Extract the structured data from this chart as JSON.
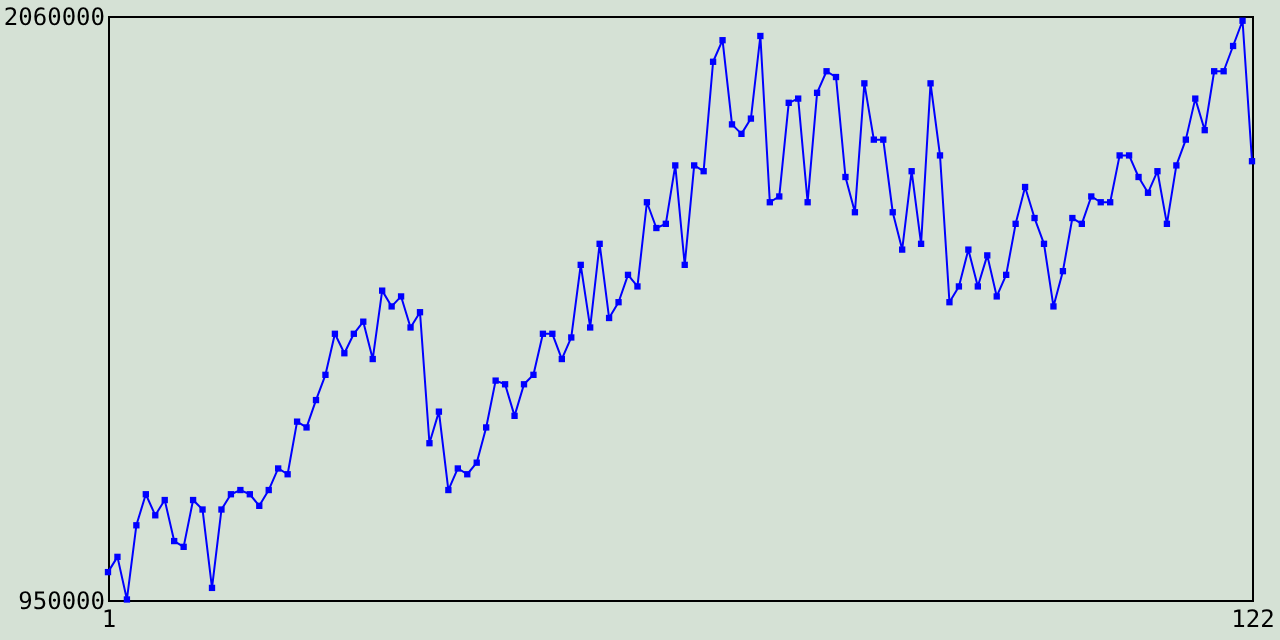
{
  "chart_data": {
    "type": "line",
    "x": [
      1,
      2,
      3,
      4,
      5,
      6,
      7,
      8,
      9,
      10,
      11,
      12,
      13,
      14,
      15,
      16,
      17,
      18,
      19,
      20,
      21,
      22,
      23,
      24,
      25,
      26,
      27,
      28,
      29,
      30,
      31,
      32,
      33,
      34,
      35,
      36,
      37,
      38,
      39,
      40,
      41,
      42,
      43,
      44,
      45,
      46,
      47,
      48,
      49,
      50,
      51,
      52,
      53,
      54,
      55,
      56,
      57,
      58,
      59,
      60,
      61,
      62,
      63,
      64,
      65,
      66,
      67,
      68,
      69,
      70,
      71,
      72,
      73,
      74,
      75,
      76,
      77,
      78,
      79,
      80,
      81,
      82,
      83,
      84,
      85,
      86,
      87,
      88,
      89,
      90,
      91,
      92,
      93,
      94,
      95,
      96,
      97,
      98,
      99,
      100,
      101,
      102,
      103,
      104,
      105,
      106,
      107,
      108,
      109,
      110,
      111,
      112,
      113,
      114,
      115,
      116,
      117,
      118,
      119,
      120,
      121,
      122
    ],
    "series": [
      {
        "color": "#0000ff",
        "values": [
          1003000,
          1032000,
          951000,
          1092000,
          1151000,
          1111000,
          1140000,
          1062000,
          1051000,
          1140000,
          1122000,
          973000,
          1122000,
          1151000,
          1159000,
          1151000,
          1129000,
          1159000,
          1200000,
          1189000,
          1289000,
          1278000,
          1330000,
          1378000,
          1456000,
          1419000,
          1456000,
          1479000,
          1408000,
          1538000,
          1508000,
          1527000,
          1468000,
          1497000,
          1248000,
          1308000,
          1159000,
          1200000,
          1189000,
          1211000,
          1278000,
          1367000,
          1360000,
          1300000,
          1360000,
          1378000,
          1456000,
          1456000,
          1408000,
          1449000,
          1587000,
          1468000,
          1627000,
          1486000,
          1516000,
          1568000,
          1546000,
          1706000,
          1657000,
          1665000,
          1776000,
          1587000,
          1776000,
          1765000,
          1973000,
          2014000,
          1854000,
          1836000,
          1865000,
          2022000,
          1706000,
          1717000,
          1895000,
          1903000,
          1706000,
          1914000,
          1955000,
          1944000,
          1754000,
          1687000,
          1932000,
          1825000,
          1825000,
          1687000,
          1616000,
          1765000,
          1627000,
          1932000,
          1795000,
          1516000,
          1546000,
          1616000,
          1546000,
          1605000,
          1527000,
          1568000,
          1665000,
          1735000,
          1676000,
          1627000,
          1508000,
          1575000,
          1676000,
          1665000,
          1717000,
          1706000,
          1706000,
          1795000,
          1795000,
          1754000,
          1724000,
          1765000,
          1665000,
          1776000,
          1825000,
          1903000,
          1843000,
          1955000,
          1955000,
          2003000,
          2051000,
          1784000
        ]
      }
    ],
    "xlim": [
      1,
      122
    ],
    "xticks": [
      1,
      122
    ],
    "ylim": [
      950000,
      2060000
    ],
    "yticks": [
      950000,
      2060000
    ],
    "grid": false,
    "marker": "square",
    "line_style": "solid"
  }
}
